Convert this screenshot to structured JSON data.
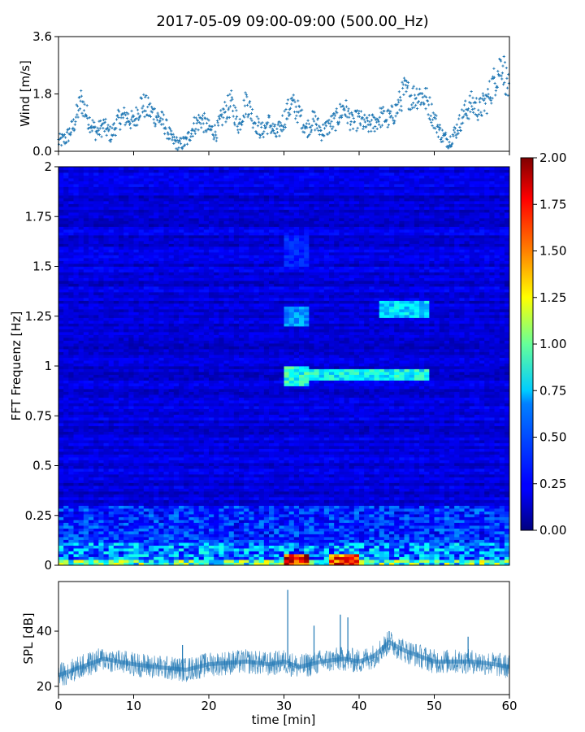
{
  "title": "2017-05-09 09:00-09:00 (500.00_Hz)",
  "colors": {
    "series": "#1f77b4",
    "axis": "#000000",
    "background": "#ffffff"
  },
  "chart_data": [
    {
      "type": "scatter",
      "name": "wind",
      "ylabel": "Wind [m/s]",
      "xlim": [
        0,
        60
      ],
      "ylim": [
        0,
        3.6
      ],
      "yticks": [
        0.0,
        1.8,
        3.6
      ],
      "ytick_labels": [
        "0.0",
        "1.8",
        "3.6"
      ],
      "marker": "+",
      "keyframes": {
        "x": [
          0,
          1,
          2,
          3,
          4,
          5,
          6,
          7,
          8,
          9,
          10,
          11,
          12,
          13,
          14,
          15,
          16,
          17,
          18,
          19,
          20,
          21,
          22,
          23,
          24,
          25,
          26,
          27,
          28,
          29,
          30,
          31,
          32,
          33,
          34,
          35,
          36,
          37,
          38,
          39,
          40,
          41,
          42,
          43,
          44,
          45,
          46,
          47,
          48,
          49,
          50,
          51,
          52,
          53,
          54,
          55,
          56,
          57,
          58,
          59,
          60
        ],
        "y": [
          0.3,
          0.4,
          0.8,
          1.6,
          1.0,
          0.6,
          0.8,
          0.5,
          1.0,
          1.1,
          0.9,
          1.5,
          1.3,
          1.1,
          0.9,
          0.4,
          0.2,
          0.3,
          0.8,
          1.0,
          0.7,
          0.6,
          1.2,
          1.5,
          0.8,
          1.6,
          1.0,
          0.6,
          0.9,
          0.5,
          1.0,
          1.5,
          1.2,
          0.7,
          1.0,
          0.6,
          0.8,
          1.0,
          1.4,
          0.9,
          1.0,
          0.8,
          0.9,
          1.1,
          1.0,
          1.3,
          1.9,
          1.7,
          1.8,
          1.6,
          1.0,
          0.5,
          0.3,
          0.7,
          1.2,
          1.5,
          1.3,
          1.6,
          2.2,
          2.8,
          1.8
        ]
      }
    },
    {
      "type": "heatmap",
      "name": "spectrogram",
      "ylabel": "FFT Frequenz [Hz]",
      "xlim": [
        0,
        60
      ],
      "ylim": [
        0,
        2
      ],
      "yticks": [
        0,
        0.25,
        0.5,
        0.75,
        1,
        1.25,
        1.5,
        1.75,
        2
      ],
      "ytick_labels": [
        "0",
        "0.25",
        "0.5",
        "0.75",
        "1",
        "1.25",
        "1.5",
        "1.75",
        "2"
      ],
      "colormap": "jet",
      "colorbar": {
        "range": [
          0,
          2
        ],
        "ticks": [
          0.0,
          0.25,
          0.5,
          0.75,
          1.0,
          1.25,
          1.5,
          1.75,
          2.0
        ],
        "tick_labels": [
          "0.00",
          "0.25",
          "0.50",
          "0.75",
          "1.00",
          "1.25",
          "1.50",
          "1.75",
          "2.00"
        ]
      },
      "features": [
        {
          "t": [
            0,
            60
          ],
          "f": [
            0,
            0.3
          ],
          "level": 0.55
        },
        {
          "t": [
            30,
            33
          ],
          "f": [
            0,
            0.05
          ],
          "level": 2.0
        },
        {
          "t": [
            36,
            40
          ],
          "f": [
            0,
            0.05
          ],
          "level": 1.8
        },
        {
          "t": [
            30,
            33
          ],
          "f": [
            0.9,
            1.0
          ],
          "level": 0.9
        },
        {
          "t": [
            33,
            49
          ],
          "f": [
            0.93,
            0.98
          ],
          "level": 0.85
        },
        {
          "t": [
            30,
            33
          ],
          "f": [
            1.2,
            1.3
          ],
          "level": 0.6
        },
        {
          "t": [
            43,
            49
          ],
          "f": [
            1.25,
            1.33
          ],
          "level": 0.75
        },
        {
          "t": [
            30,
            33
          ],
          "f": [
            1.5,
            1.65
          ],
          "level": 0.35
        }
      ]
    },
    {
      "type": "line",
      "name": "spl",
      "ylabel": "SPL [dB]",
      "xlabel": "time [min]",
      "xlim": [
        0,
        60
      ],
      "ylim": [
        17,
        58
      ],
      "xticks": [
        0,
        10,
        20,
        30,
        40,
        50,
        60
      ],
      "xtick_labels": [
        "0",
        "10",
        "20",
        "30",
        "40",
        "50",
        "60"
      ],
      "yticks": [
        20,
        40
      ],
      "ytick_labels": [
        "20",
        "40"
      ],
      "keyframes": {
        "x": [
          0,
          3,
          6,
          10,
          13,
          17,
          20,
          25,
          28,
          30,
          32,
          35,
          38,
          40,
          42,
          44,
          46,
          48,
          50,
          52,
          55,
          58,
          60
        ],
        "y": [
          24,
          27,
          30,
          28,
          27,
          26,
          28,
          29,
          28,
          29,
          27,
          29,
          30,
          29,
          31,
          36,
          33,
          31,
          29,
          29,
          29,
          28,
          27
        ]
      },
      "spikes": [
        {
          "x": 30.5,
          "y": 55
        },
        {
          "x": 34.0,
          "y": 42
        },
        {
          "x": 37.5,
          "y": 46
        },
        {
          "x": 38.5,
          "y": 45
        },
        {
          "x": 16.5,
          "y": 35
        },
        {
          "x": 44.0,
          "y": 40
        },
        {
          "x": 54.5,
          "y": 38
        }
      ]
    }
  ]
}
